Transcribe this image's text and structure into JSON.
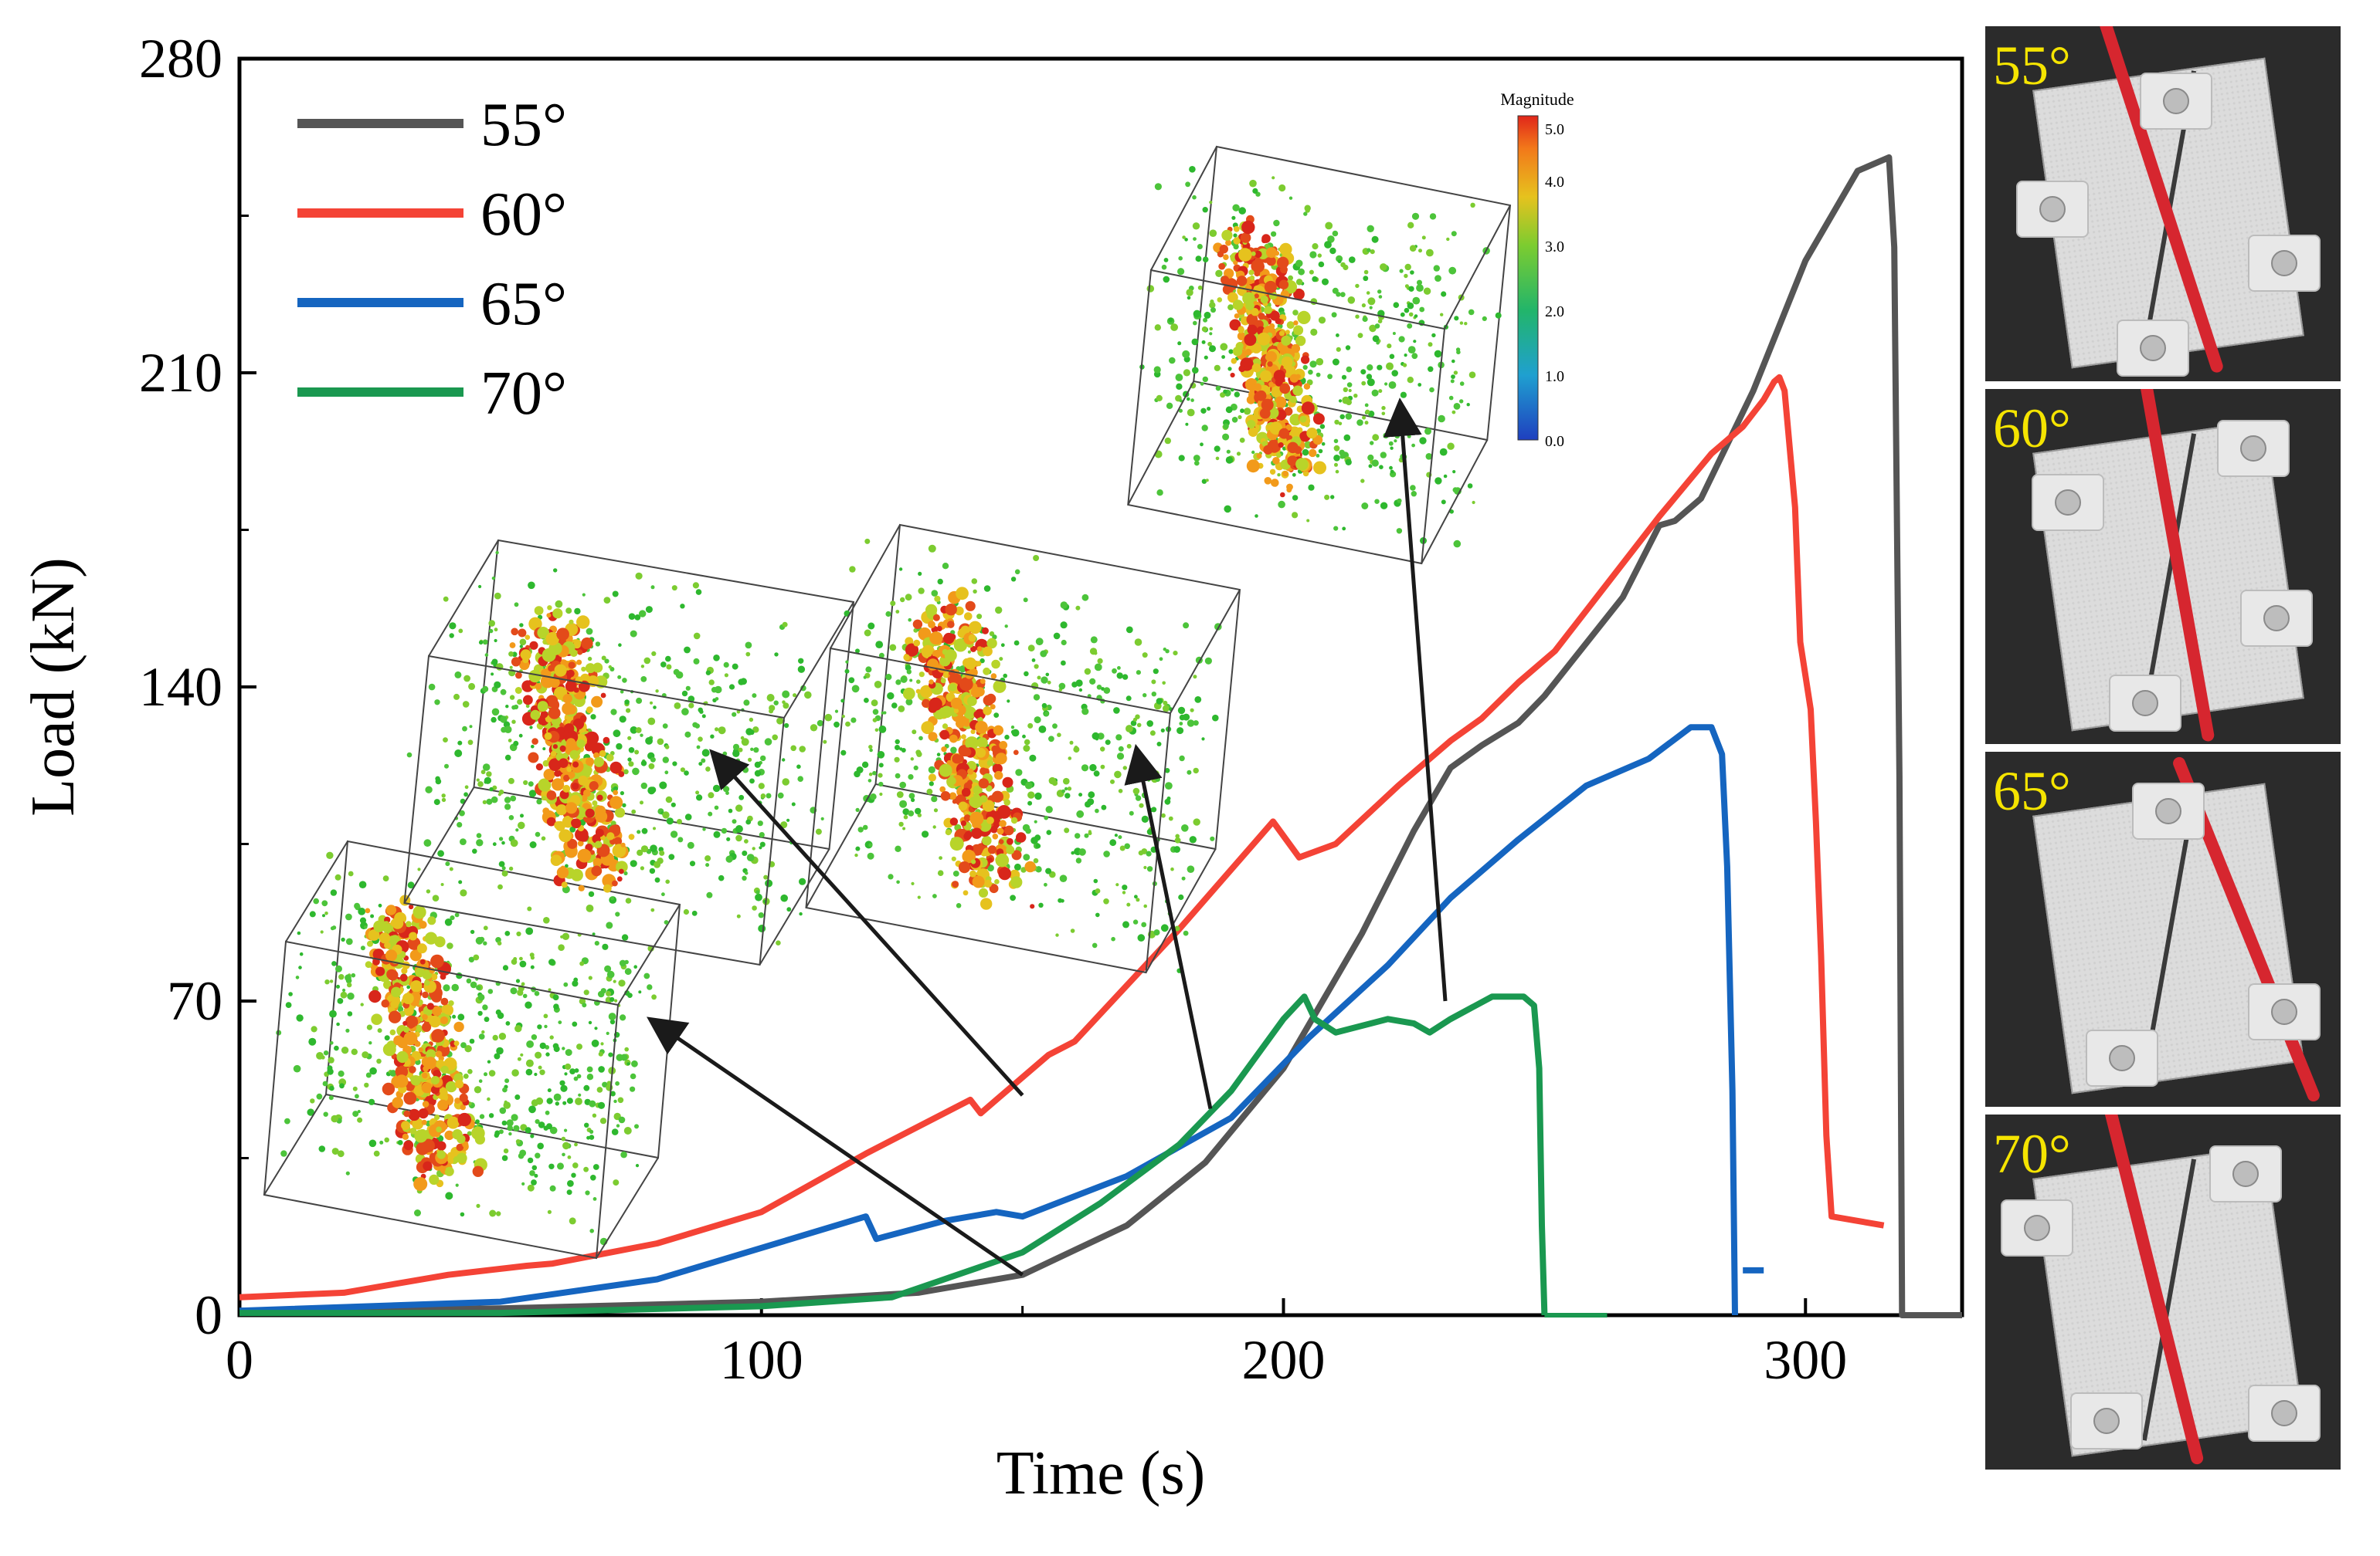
{
  "chart_data": {
    "type": "line",
    "xlabel": "Time (s)",
    "ylabel": "Load (kN)",
    "xlim": [
      0,
      330
    ],
    "ylim": [
      0,
      280
    ],
    "x_ticks": [
      0,
      100,
      200,
      300
    ],
    "y_ticks": [
      0,
      70,
      140,
      210,
      280
    ],
    "legend_position": "top-left",
    "series": [
      {
        "name": "55°",
        "color": "#555555",
        "points": [
          [
            0,
            1
          ],
          [
            50,
            1.5
          ],
          [
            100,
            3
          ],
          [
            130,
            5
          ],
          [
            150,
            9
          ],
          [
            170,
            20
          ],
          [
            185,
            34
          ],
          [
            200,
            55
          ],
          [
            215,
            85
          ],
          [
            225,
            108
          ],
          [
            232,
            122
          ],
          [
            238,
            127
          ],
          [
            245,
            132
          ],
          [
            250,
            138
          ],
          [
            265,
            160
          ],
          [
            272,
            176
          ],
          [
            275,
            177
          ],
          [
            280,
            182
          ],
          [
            290,
            206
          ],
          [
            300,
            235
          ],
          [
            310,
            255
          ],
          [
            316,
            258
          ],
          [
            317,
            238
          ],
          [
            318,
            120
          ],
          [
            318.5,
            0
          ],
          [
            330,
            0
          ]
        ]
      },
      {
        "name": "60°",
        "color": "#f44336",
        "points": [
          [
            0,
            4
          ],
          [
            20,
            5
          ],
          [
            40,
            9
          ],
          [
            55,
            11
          ],
          [
            60,
            11.5
          ],
          [
            80,
            16
          ],
          [
            100,
            23
          ],
          [
            120,
            36
          ],
          [
            140,
            48
          ],
          [
            142,
            45
          ],
          [
            145,
            48
          ],
          [
            155,
            58
          ],
          [
            160,
            61
          ],
          [
            180,
            86
          ],
          [
            195,
            106
          ],
          [
            198,
            110
          ],
          [
            203,
            102
          ],
          [
            210,
            105
          ],
          [
            222,
            118
          ],
          [
            232,
            128
          ],
          [
            238,
            133
          ],
          [
            245,
            141
          ],
          [
            252,
            148
          ],
          [
            262,
            163
          ],
          [
            272,
            178
          ],
          [
            282,
            192
          ],
          [
            288,
            198
          ],
          [
            292,
            204
          ],
          [
            294,
            208
          ],
          [
            295,
            209
          ],
          [
            296,
            206
          ],
          [
            298,
            180
          ],
          [
            299,
            150
          ],
          [
            301,
            135
          ],
          [
            302,
            110
          ],
          [
            303,
            80
          ],
          [
            304,
            40
          ],
          [
            305,
            22
          ],
          [
            315,
            20
          ]
        ]
      },
      {
        "name": "65°",
        "color": "#1565c0",
        "points": [
          [
            0,
            1
          ],
          [
            50,
            3
          ],
          [
            80,
            8
          ],
          [
            100,
            15
          ],
          [
            120,
            22
          ],
          [
            122,
            17
          ],
          [
            135,
            21
          ],
          [
            145,
            23
          ],
          [
            150,
            22
          ],
          [
            170,
            31
          ],
          [
            190,
            44
          ],
          [
            205,
            62
          ],
          [
            220,
            78
          ],
          [
            232,
            93
          ],
          [
            245,
            106
          ],
          [
            258,
            118
          ],
          [
            270,
            124
          ],
          [
            278,
            131
          ],
          [
            282,
            131
          ],
          [
            284,
            125
          ],
          [
            285,
            100
          ],
          [
            286,
            50
          ],
          [
            286.5,
            0
          ]
        ]
      },
      {
        "name": "70°",
        "color": "#1a9850",
        "points": [
          [
            0,
            0.5
          ],
          [
            50,
            0.5
          ],
          [
            100,
            2
          ],
          [
            125,
            4
          ],
          [
            130,
            6
          ],
          [
            135,
            8
          ],
          [
            150,
            14
          ],
          [
            165,
            25
          ],
          [
            180,
            38
          ],
          [
            190,
            50
          ],
          [
            200,
            66
          ],
          [
            204,
            71
          ],
          [
            206,
            66
          ],
          [
            210,
            63
          ],
          [
            220,
            66
          ],
          [
            225,
            65
          ],
          [
            228,
            63
          ],
          [
            232,
            66
          ],
          [
            240,
            71
          ],
          [
            246,
            71
          ],
          [
            248,
            69
          ],
          [
            249,
            55
          ],
          [
            249.5,
            20
          ],
          [
            250,
            0
          ]
        ]
      }
    ]
  },
  "colorbar": {
    "title": "Magnitude",
    "ticks": [
      "5.0",
      "4.0",
      "3.0",
      "2.0",
      "1.0",
      "0.0"
    ]
  },
  "photo_labels": [
    "55°",
    "60°",
    "65°",
    "70°"
  ]
}
